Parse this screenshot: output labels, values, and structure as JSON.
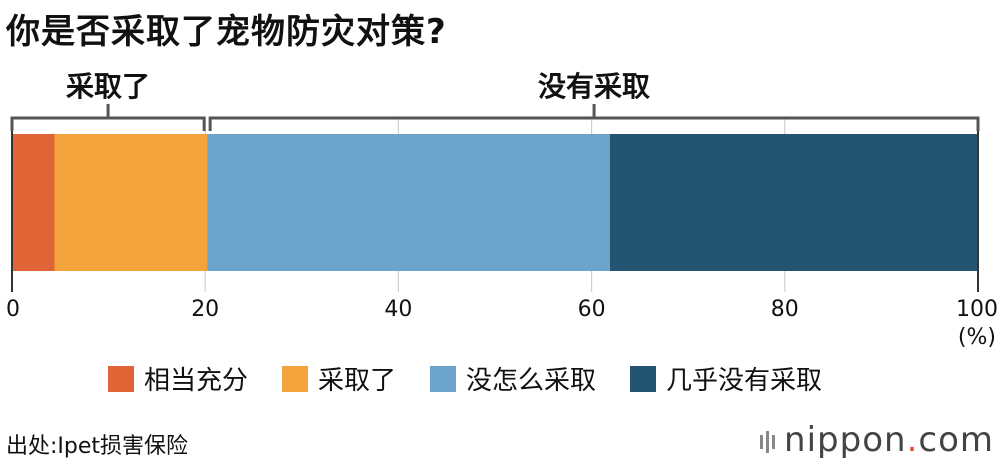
{
  "title": "你是否采取了宠物防灾对策?",
  "chart_data": {
    "type": "bar",
    "orientation": "horizontal",
    "stacked": true,
    "xlim": [
      0,
      100
    ],
    "ticks": [
      0,
      20,
      40,
      60,
      80,
      100
    ],
    "unit": "(%)",
    "grid": true,
    "series": [
      {
        "name": "相当充分",
        "value": 4.4,
        "color": "#e06436"
      },
      {
        "name": "采取了",
        "value": 15.8,
        "color": "#f2a33b"
      },
      {
        "name": "没怎么采取",
        "value": 41.7,
        "color": "#6ca4cc"
      },
      {
        "name": "几乎没有采取",
        "value": 38.1,
        "color": "#235573"
      }
    ],
    "brackets": [
      {
        "label": "采取了",
        "from": 0,
        "to": 20.2
      },
      {
        "label": "没有采取",
        "from": 20.2,
        "to": 100
      }
    ]
  },
  "source": "出处:Ipet损害保险",
  "logo": {
    "name": "nippon",
    "dot": ".",
    "tld": "com"
  }
}
